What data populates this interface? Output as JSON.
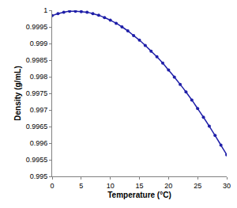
{
  "chart_data": {
    "type": "line",
    "x_label": "Temperature (°C)",
    "y_label": "Density (g/mL)",
    "x": [
      0,
      1,
      2,
      3,
      4,
      5,
      6,
      7,
      8,
      9,
      10,
      11,
      12,
      13,
      14,
      15,
      16,
      17,
      18,
      19,
      20,
      21,
      22,
      23,
      24,
      25,
      26,
      27,
      28,
      29,
      30
    ],
    "values": [
      0.99984,
      0.9999,
      0.99994,
      0.99997,
      0.99997,
      0.99996,
      0.99994,
      0.9999,
      0.99985,
      0.99978,
      0.9997,
      0.99961,
      0.9995,
      0.99938,
      0.99924,
      0.9991,
      0.99894,
      0.99877,
      0.9986,
      0.99841,
      0.9982,
      0.99799,
      0.99777,
      0.99754,
      0.9973,
      0.99704,
      0.99678,
      0.99651,
      0.99623,
      0.99594,
      0.99565
    ],
    "color": "#1f1fa8",
    "marker": "circle",
    "xlim": [
      0,
      30
    ],
    "xticks": [
      0,
      5,
      10,
      15,
      20,
      25,
      30
    ],
    "ylim": [
      0.995,
      1
    ],
    "yticks": [
      0.995,
      0.9955,
      0.996,
      0.9965,
      0.997,
      0.9975,
      0.998,
      0.9985,
      0.999,
      0.9995,
      1
    ],
    "grid": false
  }
}
